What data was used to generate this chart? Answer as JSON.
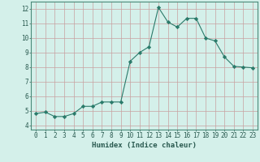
{
  "x": [
    0,
    1,
    2,
    3,
    4,
    5,
    6,
    7,
    8,
    9,
    10,
    11,
    12,
    13,
    14,
    15,
    16,
    17,
    18,
    19,
    20,
    21,
    22,
    23
  ],
  "y": [
    4.8,
    4.9,
    4.6,
    4.6,
    4.8,
    5.3,
    5.3,
    5.6,
    5.6,
    5.6,
    8.4,
    9.0,
    9.4,
    12.1,
    11.1,
    10.75,
    11.35,
    11.35,
    10.0,
    9.8,
    8.7,
    8.05,
    8.0,
    7.95
  ],
  "xlabel": "Humidex (Indice chaleur)",
  "ylabel": "",
  "ylim": [
    3.7,
    12.5
  ],
  "xlim": [
    -0.5,
    23.5
  ],
  "yticks": [
    4,
    5,
    6,
    7,
    8,
    9,
    10,
    11,
    12
  ],
  "xticks": [
    0,
    1,
    2,
    3,
    4,
    5,
    6,
    7,
    8,
    9,
    10,
    11,
    12,
    13,
    14,
    15,
    16,
    17,
    18,
    19,
    20,
    21,
    22,
    23
  ],
  "line_color": "#2a7a6a",
  "marker_color": "#2a7a6a",
  "bg_color": "#d4f0ea",
  "grid_color_major": "#c8a0a0",
  "grid_color_minor": "#ddc8c8",
  "tick_label_fontsize": 5.5,
  "xlabel_fontsize": 6.5,
  "tick_color": "#2a5a50"
}
